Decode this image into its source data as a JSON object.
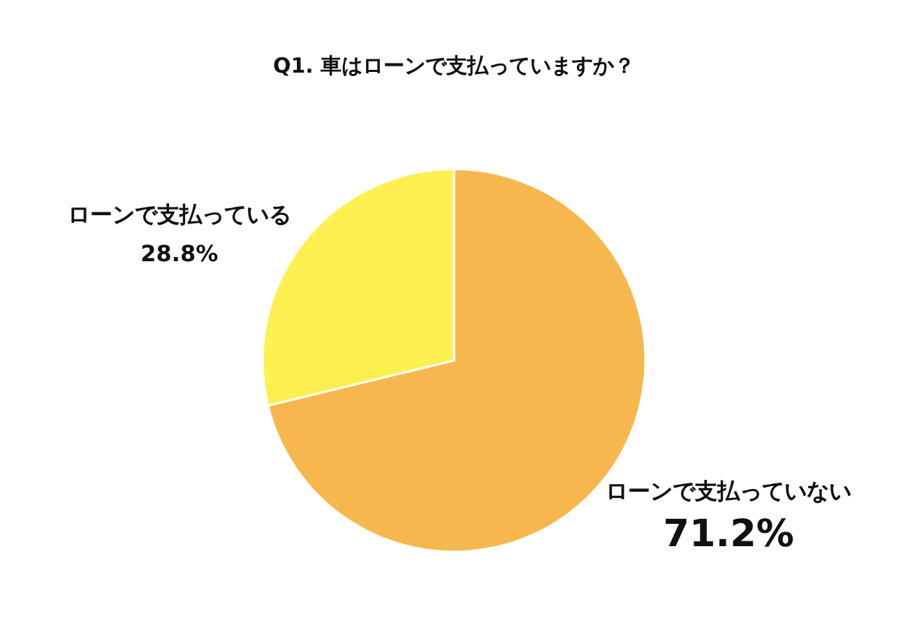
{
  "chart_data": {
    "type": "pie",
    "title": "Q1. 車はローンで支払っていますか？",
    "categories": [
      "ローンで支払っていない",
      "ローンで支払っている"
    ],
    "values": [
      71.2,
      28.8
    ],
    "colors": [
      "#f6b84e",
      "#fff052"
    ],
    "value_labels": [
      "71.2%",
      "28.8%"
    ]
  }
}
